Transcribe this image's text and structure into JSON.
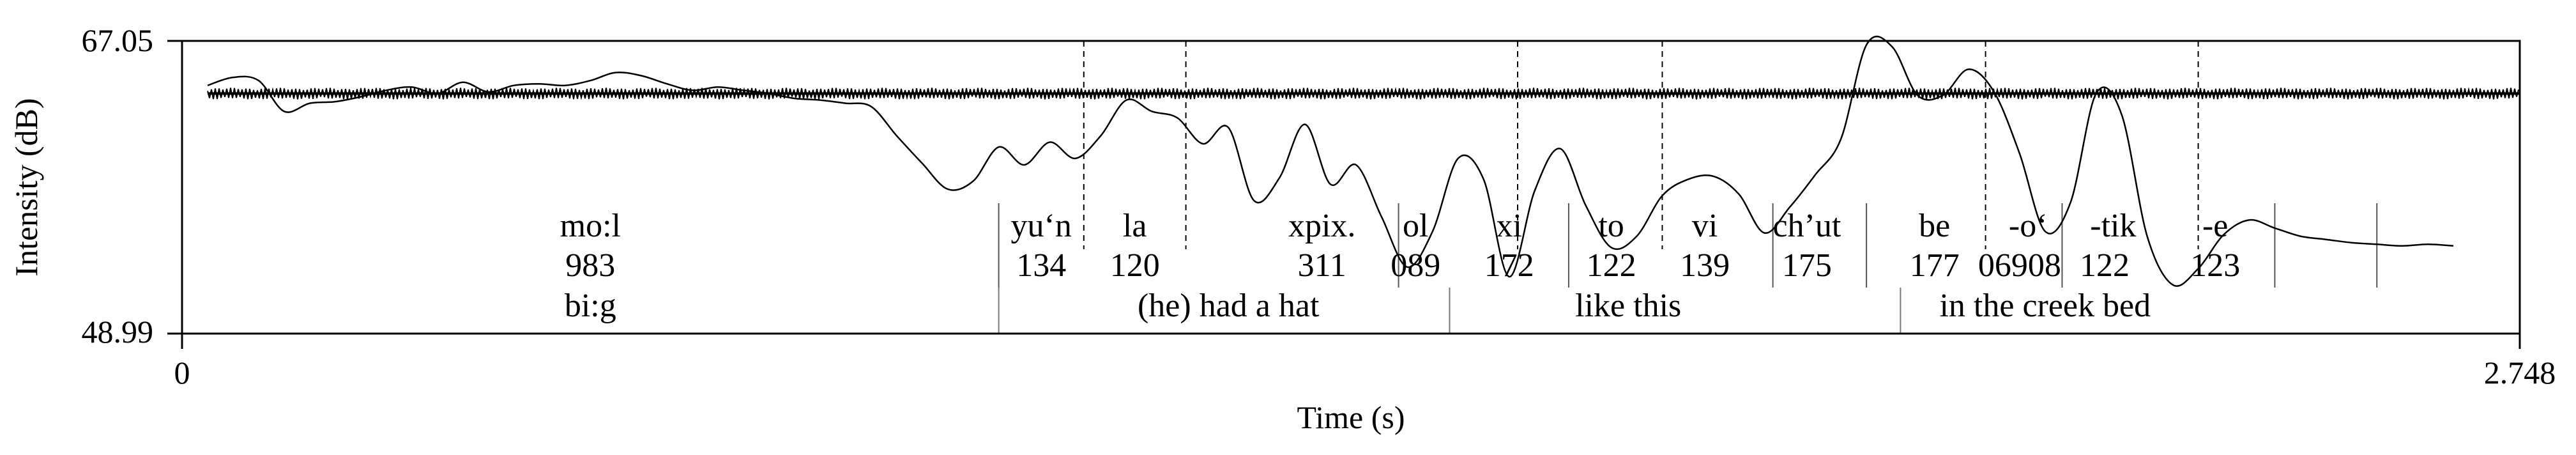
{
  "chart_data": {
    "type": "line",
    "title": "",
    "xlabel": "Time (s)",
    "ylabel": "Intensity (dB)",
    "xlim": [
      0,
      2.748
    ],
    "ylim": [
      48.99,
      67.05
    ],
    "x_tick_labels": [
      "0",
      "2.748"
    ],
    "y_tick_labels": [
      "48.99",
      "67.05"
    ],
    "grid": false,
    "series": [
      {
        "values_note": "intensity contour",
        "x": [
          0.03,
          0.06,
          0.09,
          0.12,
          0.15,
          0.18,
          0.21,
          0.24,
          0.27,
          0.3,
          0.33,
          0.36,
          0.39,
          0.42,
          0.45,
          0.48,
          0.51,
          0.54,
          0.57,
          0.6,
          0.63,
          0.66,
          0.69,
          0.72,
          0.75,
          0.78,
          0.81,
          0.84,
          0.87,
          0.9,
          0.93,
          0.96,
          0.99,
          1.02,
          1.05,
          1.08,
          1.11,
          1.14,
          1.17,
          1.2,
          1.23,
          1.26,
          1.29,
          1.32,
          1.35,
          1.38,
          1.41,
          1.44,
          1.47,
          1.5,
          1.53,
          1.56,
          1.59,
          1.62,
          1.65,
          1.68,
          1.71,
          1.74,
          1.77,
          1.8,
          1.83,
          1.86,
          1.89,
          1.92,
          1.95,
          1.98,
          2.01,
          2.04,
          2.07,
          2.1,
          2.13,
          2.16,
          2.19,
          2.22,
          2.25,
          2.28,
          2.31,
          2.34,
          2.37,
          2.4,
          2.43,
          2.46,
          2.49,
          2.52,
          2.55,
          2.58,
          2.61,
          2.64,
          2.67
        ],
        "y": [
          64.3,
          64.8,
          64.6,
          62.7,
          63.2,
          63.3,
          63.6,
          64.0,
          64.2,
          63.8,
          64.5,
          63.9,
          64.3,
          64.4,
          64.3,
          64.6,
          65.1,
          64.9,
          64.4,
          64.0,
          64.2,
          64.0,
          63.8,
          63.5,
          63.4,
          63.2,
          63.0,
          61.2,
          59.5,
          57.9,
          58.4,
          60.5,
          59.4,
          60.8,
          59.8,
          61.2,
          63.4,
          62.7,
          62.3,
          60.7,
          61.7,
          57.2,
          58.6,
          61.9,
          58.2,
          59.4,
          56.2,
          53.1,
          55.3,
          59.8,
          58.5,
          52.5,
          57.8,
          60.4,
          56.9,
          54.3,
          55.0,
          57.5,
          58.5,
          58.7,
          57.6,
          55.2,
          56.8,
          58.8,
          61.0,
          66.8,
          66.7,
          63.7,
          63.7,
          65.3,
          63.9,
          60.1,
          55.3,
          57.1,
          63.8,
          62.5,
          55.0,
          52.0,
          53.0,
          55.1,
          56.0,
          55.5,
          55.0,
          54.8,
          54.6,
          54.5,
          54.4,
          54.5,
          54.4
        ]
      },
      {
        "values_note": "waveform baseline",
        "x": [
          0.03,
          2.748
        ],
        "y": [
          63.8,
          63.8
        ]
      }
    ],
    "boundaries_dashed": [
      1.06,
      1.18,
      1.57,
      1.74,
      2.12,
      2.37
    ],
    "boundaries_solid": [
      0.96,
      1.43,
      1.63,
      1.87,
      1.98,
      2.21,
      2.46,
      2.58
    ],
    "boundaries_lower": [
      0.96,
      1.49,
      2.02
    ],
    "annotation_rows": {
      "morphemes": [
        {
          "text": "mo:l",
          "x": 0.48
        },
        {
          "text": "yu‘n",
          "x": 1.01
        },
        {
          "text": "la",
          "x": 1.12
        },
        {
          "text": "xpix.",
          "x": 1.34
        },
        {
          "text": "ol",
          "x": 1.45
        },
        {
          "text": "xi",
          "x": 1.56
        },
        {
          "text": "to",
          "x": 1.68
        },
        {
          "text": "vi",
          "x": 1.79
        },
        {
          "text": "ch’ut",
          "x": 1.91
        },
        {
          "text": "be",
          "x": 2.06
        },
        {
          "text": "-o‘",
          "x": 2.17
        },
        {
          "text": "-tik",
          "x": 2.27
        },
        {
          "text": "-e",
          "x": 2.39
        }
      ],
      "numbers": [
        {
          "text": "983",
          "x": 0.48
        },
        {
          "text": "134",
          "x": 1.01
        },
        {
          "text": "120",
          "x": 1.12
        },
        {
          "text": "311",
          "x": 1.34
        },
        {
          "text": "089",
          "x": 1.45
        },
        {
          "text": "172",
          "x": 1.56
        },
        {
          "text": "122",
          "x": 1.68
        },
        {
          "text": "139",
          "x": 1.79
        },
        {
          "text": "175",
          "x": 1.91
        },
        {
          "text": "177",
          "x": 2.06
        },
        {
          "text": "06908",
          "x": 2.16
        },
        {
          "text": "122",
          "x": 2.26
        },
        {
          "text": "123",
          "x": 2.39
        }
      ],
      "glosses": [
        {
          "text": "bi:g",
          "x": 0.48
        },
        {
          "text": "(he) had a hat",
          "x": 1.23
        },
        {
          "text": "like this",
          "x": 1.7
        },
        {
          "text": "in the creek bed",
          "x": 2.19
        }
      ]
    }
  }
}
